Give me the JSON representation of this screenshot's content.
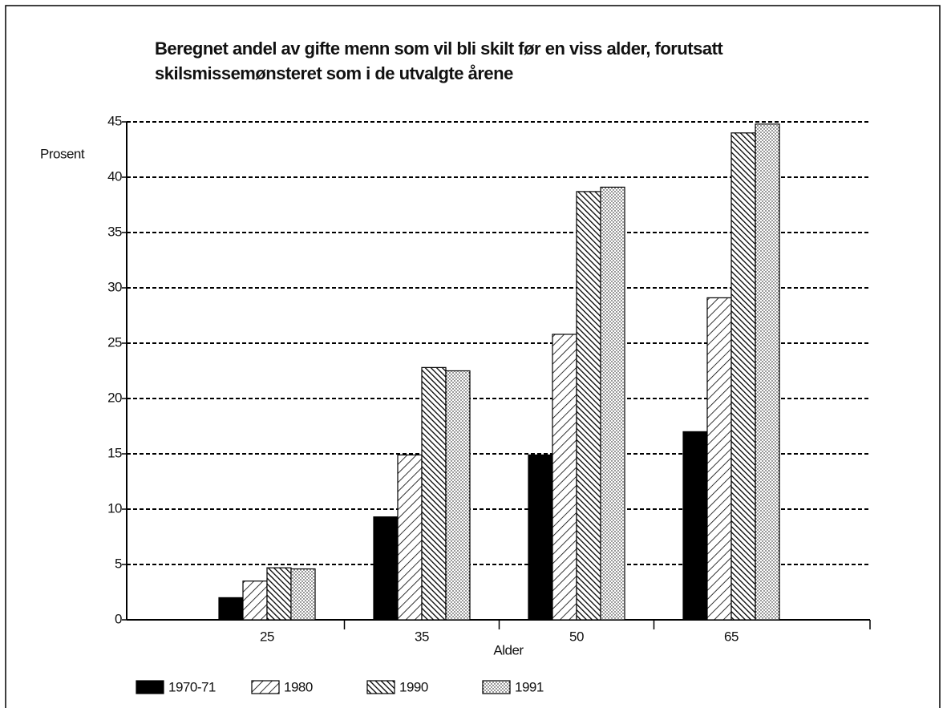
{
  "chart_data": {
    "type": "bar",
    "title": [
      "Beregnet andel av gifte menn som vil bli skilt før en viss alder, forutsatt",
      "skilsmissemønsteret som i de utvalgte årene"
    ],
    "y_label": "Prosent",
    "x_label": "Alder",
    "categories": [
      "25",
      "35",
      "50",
      "65"
    ],
    "series": [
      {
        "name": "1970-71",
        "color": "#000000",
        "values": [
          2,
          9.3,
          14.9,
          17
        ]
      },
      {
        "name": "1980",
        "color": "#000000",
        "values": [
          3.5,
          14.9,
          25.8,
          29.1
        ]
      },
      {
        "name": "1990",
        "color": "#000000",
        "values": [
          4.7,
          22.8,
          38.7,
          44
        ]
      },
      {
        "name": "1991",
        "color": "#000000",
        "values": [
          4.6,
          22.5,
          39.1,
          44.8
        ]
      }
    ],
    "ylim": [
      0,
      45
    ],
    "yticks": [
      0,
      5,
      10,
      15,
      20,
      25,
      30,
      35,
      40,
      45
    ],
    "grid": true
  }
}
